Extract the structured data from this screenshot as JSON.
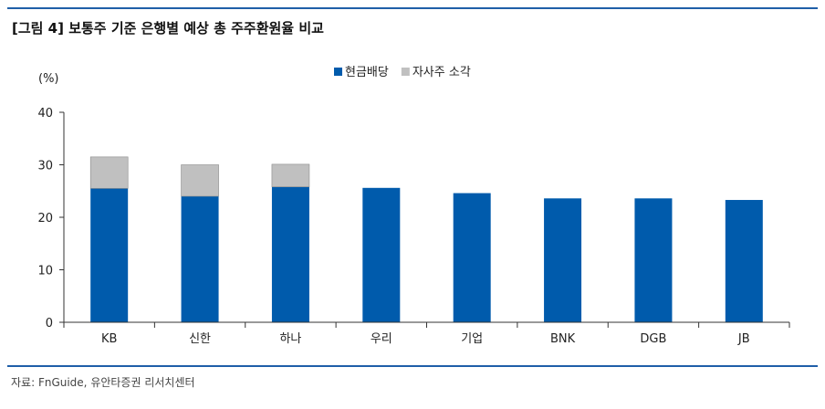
{
  "header": {
    "title": "[그림 4] 보통주 기준 은행별 예상 총 주주환원율 비교"
  },
  "footer": {
    "source": "자료: FnGuide, 유안타증권 리서치센터"
  },
  "colors": {
    "accent_rule": "#1f5fa8",
    "cash_dividend": "#005bac",
    "buyback": "#c0c0c0"
  },
  "chart_data": {
    "type": "bar",
    "stacked": true,
    "ylabel": "(%)",
    "ylim": [
      0,
      40
    ],
    "yticks": [
      0,
      10,
      20,
      30,
      40
    ],
    "categories": [
      "KB",
      "신한",
      "하나",
      "우리",
      "기업",
      "BNK",
      "DGB",
      "JB"
    ],
    "series": [
      {
        "name": "현금배당",
        "color": "#005bac",
        "values": [
          25.5,
          24.0,
          25.8,
          25.6,
          24.6,
          23.6,
          23.6,
          23.3
        ]
      },
      {
        "name": "자사주 소각",
        "color": "#c0c0c0",
        "values": [
          6.0,
          6.0,
          4.3,
          0,
          0,
          0,
          0,
          0
        ]
      }
    ],
    "legend": {
      "position": "top-center"
    },
    "grid": false
  }
}
